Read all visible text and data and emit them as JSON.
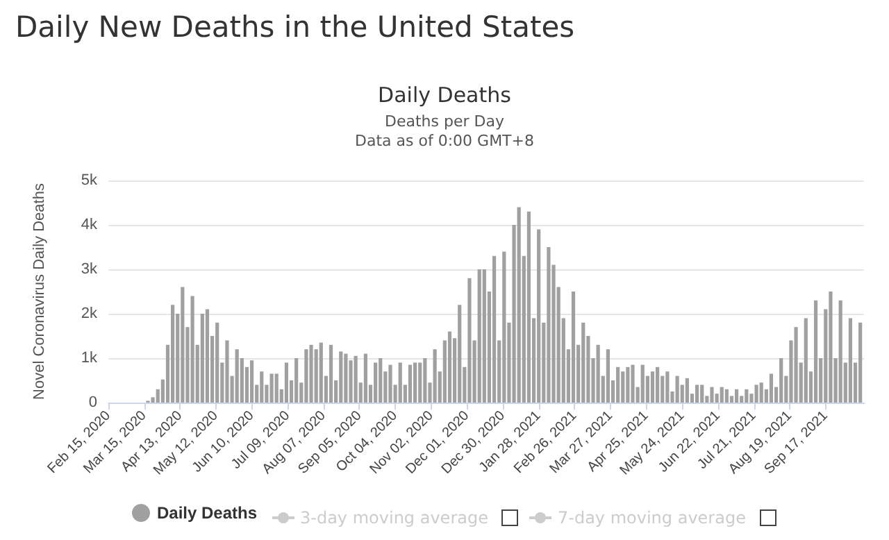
{
  "chart_data": {
    "type": "bar",
    "title": "Daily New Deaths in the United States",
    "subtitle": "Daily Deaths",
    "ylabel": "Novel Coronavirus Daily Deaths",
    "annotations": [
      "Deaths per Day",
      "Data as of 0:00 GMT+8",
      "3-day moving average",
      "7-day moving average"
    ],
    "x": [
      "2020-02-15",
      "2020-02-19",
      "2020-02-23",
      "2020-02-27",
      "2020-03-02",
      "2020-03-06",
      "2020-03-10",
      "2020-03-14",
      "2020-03-18",
      "2020-03-22",
      "2020-03-26",
      "2020-03-30",
      "2020-04-03",
      "2020-04-07",
      "2020-04-11",
      "2020-04-15",
      "2020-04-19",
      "2020-04-23",
      "2020-04-27",
      "2020-05-01",
      "2020-05-05",
      "2020-05-09",
      "2020-05-13",
      "2020-05-17",
      "2020-05-21",
      "2020-05-25",
      "2020-05-29",
      "2020-06-02",
      "2020-06-06",
      "2020-06-10",
      "2020-06-14",
      "2020-06-18",
      "2020-06-22",
      "2020-06-26",
      "2020-06-30",
      "2020-07-04",
      "2020-07-08",
      "2020-07-12",
      "2020-07-16",
      "2020-07-20",
      "2020-07-24",
      "2020-07-28",
      "2020-08-01",
      "2020-08-05",
      "2020-08-09",
      "2020-08-13",
      "2020-08-17",
      "2020-08-21",
      "2020-08-25",
      "2020-08-29",
      "2020-09-02",
      "2020-09-06",
      "2020-09-10",
      "2020-09-14",
      "2020-09-18",
      "2020-09-22",
      "2020-09-26",
      "2020-09-30",
      "2020-10-04",
      "2020-10-08",
      "2020-10-12",
      "2020-10-16",
      "2020-10-20",
      "2020-10-24",
      "2020-10-28",
      "2020-11-01",
      "2020-11-05",
      "2020-11-09",
      "2020-11-13",
      "2020-11-17",
      "2020-11-21",
      "2020-11-25",
      "2020-11-29",
      "2020-12-03",
      "2020-12-07",
      "2020-12-11",
      "2020-12-15",
      "2020-12-19",
      "2020-12-23",
      "2020-12-27",
      "2020-12-31",
      "2021-01-04",
      "2021-01-08",
      "2021-01-12",
      "2021-01-16",
      "2021-01-20",
      "2021-01-24",
      "2021-01-28",
      "2021-02-01",
      "2021-02-05",
      "2021-02-09",
      "2021-02-13",
      "2021-02-17",
      "2021-02-21",
      "2021-02-25",
      "2021-03-01",
      "2021-03-05",
      "2021-03-09",
      "2021-03-13",
      "2021-03-17",
      "2021-03-21",
      "2021-03-25",
      "2021-03-29",
      "2021-04-02",
      "2021-04-06",
      "2021-04-10",
      "2021-04-14",
      "2021-04-18",
      "2021-04-22",
      "2021-04-26",
      "2021-04-30",
      "2021-05-04",
      "2021-05-08",
      "2021-05-12",
      "2021-05-16",
      "2021-05-20",
      "2021-05-24",
      "2021-05-28",
      "2021-06-01",
      "2021-06-05",
      "2021-06-09",
      "2021-06-13",
      "2021-06-17",
      "2021-06-21",
      "2021-06-25",
      "2021-06-29",
      "2021-07-03",
      "2021-07-07",
      "2021-07-11",
      "2021-07-15",
      "2021-07-19",
      "2021-07-23",
      "2021-07-27",
      "2021-07-31",
      "2021-08-04",
      "2021-08-08",
      "2021-08-12",
      "2021-08-16",
      "2021-08-20",
      "2021-08-24",
      "2021-08-28",
      "2021-09-01",
      "2021-09-05",
      "2021-09-09",
      "2021-09-13",
      "2021-09-17",
      "2021-09-21",
      "2021-09-25",
      "2021-09-29",
      "2021-10-03",
      "2021-10-07",
      "2021-10-11",
      "2021-10-15"
    ],
    "series": [
      {
        "name": "Daily Deaths",
        "color": "#a0a0a0",
        "values": [
          0,
          0,
          0,
          0,
          null,
          null,
          null,
          null,
          40,
          120,
          300,
          520,
          1300,
          2200,
          2000,
          2600,
          1700,
          2400,
          1300,
          2000,
          2100,
          1500,
          1800,
          900,
          1400,
          600,
          1200,
          1000,
          800,
          950,
          400,
          700,
          400,
          650,
          650,
          300,
          900,
          500,
          1000,
          450,
          1200,
          1300,
          1200,
          1350,
          600,
          1300,
          500,
          1150,
          1100,
          950,
          1050,
          450,
          1100,
          400,
          900,
          1000,
          700,
          850,
          400,
          900,
          400,
          850,
          900,
          900,
          1000,
          450,
          1200,
          700,
          1400,
          1600,
          1450,
          2200,
          800,
          2800,
          1400,
          3000,
          3000,
          2500,
          3300,
          1400,
          3400,
          1800,
          4000,
          4400,
          3300,
          4300,
          1900,
          3900,
          1800,
          3500,
          3100,
          2600,
          1900,
          1200,
          2500,
          1300,
          1800,
          1500,
          1000,
          1300,
          600,
          1200,
          500,
          800,
          700,
          800,
          850,
          350,
          850,
          600,
          700,
          800,
          600,
          700,
          250,
          600,
          400,
          550,
          200,
          400,
          400,
          150,
          350,
          200,
          350,
          300,
          150,
          300,
          150,
          300,
          200,
          400,
          450,
          300,
          650,
          350,
          1000,
          600,
          1400,
          1700,
          900,
          1900,
          700,
          2300,
          1000,
          2100,
          2500,
          1000,
          2300,
          900,
          1900,
          900,
          1800
        ]
      }
    ],
    "xlim": [
      "2020-02-15",
      "2021-10-18"
    ],
    "xticks": [
      {
        "value": "2020-02-15",
        "label": "Feb 15, 2020"
      },
      {
        "value": "2020-03-15",
        "label": "Mar 15, 2020"
      },
      {
        "value": "2020-04-13",
        "label": "Apr 13, 2020"
      },
      {
        "value": "2020-05-12",
        "label": "May 12, 2020"
      },
      {
        "value": "2020-06-10",
        "label": "Jun 10, 2020"
      },
      {
        "value": "2020-07-09",
        "label": "Jul 09, 2020"
      },
      {
        "value": "2020-08-07",
        "label": "Aug 07, 2020"
      },
      {
        "value": "2020-09-05",
        "label": "Sep 05, 2020"
      },
      {
        "value": "2020-10-04",
        "label": "Oct 04, 2020"
      },
      {
        "value": "2020-11-02",
        "label": "Nov 02, 2020"
      },
      {
        "value": "2020-12-01",
        "label": "Dec 01, 2020"
      },
      {
        "value": "2020-12-30",
        "label": "Dec 30, 2020"
      },
      {
        "value": "2021-01-28",
        "label": "Jan 28, 2021"
      },
      {
        "value": "2021-02-26",
        "label": "Feb 26, 2021"
      },
      {
        "value": "2021-03-27",
        "label": "Mar 27, 2021"
      },
      {
        "value": "2021-04-25",
        "label": "Apr 25, 2021"
      },
      {
        "value": "2021-05-24",
        "label": "May 24, 2021"
      },
      {
        "value": "2021-06-22",
        "label": "Jun 22, 2021"
      },
      {
        "value": "2021-07-21",
        "label": "Jul 21, 2021"
      },
      {
        "value": "2021-08-19",
        "label": "Aug 19, 2021"
      },
      {
        "value": "2021-09-17",
        "label": "Sep 17, 2021"
      }
    ],
    "ylim": [
      0,
      5000
    ],
    "yticks": [
      0,
      {
        "value": 1000,
        "label": "1k"
      },
      {
        "value": 2000,
        "label": "2k"
      },
      {
        "value": 3000,
        "label": "3k"
      },
      {
        "value": 4000,
        "label": "4k"
      },
      {
        "value": 5000,
        "label": "5k"
      }
    ],
    "grid": "y",
    "legend": "bottom"
  }
}
